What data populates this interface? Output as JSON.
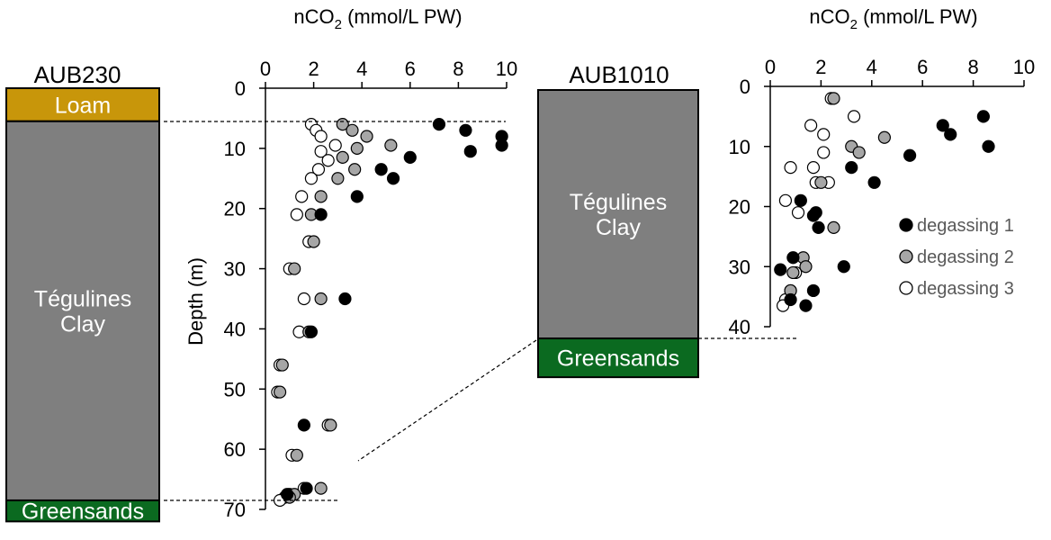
{
  "colors": {
    "loam": "#C8960A",
    "clay": "#7F7F7F",
    "greensands": "#0B6A20",
    "degassing_1": "#000000",
    "degassing_2": "#A6A6A6",
    "degassing_3": "#FFFFFF"
  },
  "columns": {
    "aub230": {
      "title": "AUB230",
      "units": [
        {
          "name": "Loam",
          "top_m": 0,
          "bottom_m": 5.5
        },
        {
          "name": "Tégulines\nClay",
          "top_m": 5.5,
          "bottom_m": 68.5
        },
        {
          "name": "Greensands",
          "top_m": 68.5,
          "bottom_m": 72
        }
      ]
    },
    "aub1010": {
      "title": "AUB1010",
      "units": [
        {
          "name": "Tégulines\nClay",
          "top_m": 5.5,
          "bottom_m": 37.5
        },
        {
          "name": "Greensands",
          "top_m": 37.5,
          "bottom_m": 42.5
        }
      ]
    }
  },
  "chart_data": [
    {
      "type": "scatter",
      "well": "AUB230",
      "xlabel": "nCO2 (mmol/L PW)",
      "ylabel": "Depth (m)",
      "xlim": [
        0,
        10
      ],
      "ylim": [
        70,
        0
      ],
      "xticks": [
        0,
        2,
        4,
        6,
        8,
        10
      ],
      "yticks": [
        0,
        10,
        20,
        30,
        40,
        50,
        60,
        70
      ],
      "legend": "none",
      "series": [
        {
          "name": "degassing 1",
          "points": [
            [
              7.2,
              6
            ],
            [
              8.3,
              7
            ],
            [
              9.8,
              8
            ],
            [
              9.8,
              9.5
            ],
            [
              8.5,
              10.5
            ],
            [
              6.0,
              11.5
            ],
            [
              4.8,
              13.5
            ],
            [
              5.3,
              15
            ],
            [
              3.8,
              18
            ],
            [
              2.3,
              21
            ],
            [
              3.3,
              35
            ],
            [
              1.9,
              40.5
            ],
            [
              1.6,
              56
            ],
            [
              1.7,
              66.5
            ],
            [
              0.9,
              67.5
            ]
          ]
        },
        {
          "name": "degassing 2",
          "points": [
            [
              3.2,
              6
            ],
            [
              3.6,
              7
            ],
            [
              4.2,
              8
            ],
            [
              5.2,
              9.5
            ],
            [
              3.8,
              10
            ],
            [
              3.2,
              11.5
            ],
            [
              3.7,
              13.5
            ],
            [
              3.0,
              15
            ],
            [
              2.3,
              18
            ],
            [
              1.9,
              21
            ],
            [
              2.0,
              25.5
            ],
            [
              1.2,
              30
            ],
            [
              2.3,
              35
            ],
            [
              1.8,
              40.5
            ],
            [
              0.7,
              46
            ],
            [
              0.6,
              50.5
            ],
            [
              2.7,
              56
            ],
            [
              1.3,
              61
            ],
            [
              2.3,
              66.5
            ],
            [
              1.2,
              67.5
            ],
            [
              1.0,
              68
            ]
          ]
        },
        {
          "name": "degassing 3",
          "points": [
            [
              1.9,
              6
            ],
            [
              2.1,
              7
            ],
            [
              2.3,
              8
            ],
            [
              2.9,
              9.5
            ],
            [
              2.3,
              10.5
            ],
            [
              2.6,
              12
            ],
            [
              2.2,
              13.5
            ],
            [
              1.9,
              15
            ],
            [
              1.5,
              18
            ],
            [
              1.3,
              21
            ],
            [
              1.8,
              25.5
            ],
            [
              1.0,
              30
            ],
            [
              1.6,
              35
            ],
            [
              1.4,
              40.5
            ],
            [
              0.6,
              46
            ],
            [
              0.5,
              50.5
            ],
            [
              2.6,
              56
            ],
            [
              1.1,
              61
            ],
            [
              1.6,
              66.5
            ],
            [
              1.0,
              67.5
            ],
            [
              0.8,
              68
            ],
            [
              0.6,
              68.5
            ]
          ]
        }
      ]
    },
    {
      "type": "scatter",
      "well": "AUB1010",
      "xlabel": "nCO2 (mmol/L PW)",
      "ylabel": "",
      "xlim": [
        0,
        10
      ],
      "ylim": [
        40,
        0
      ],
      "xticks": [
        0,
        2,
        4,
        6,
        8,
        10
      ],
      "yticks": [
        0,
        10,
        20,
        30,
        40
      ],
      "legend": "right",
      "series": [
        {
          "name": "degassing 1",
          "points": [
            [
              8.4,
              5
            ],
            [
              6.8,
              6.5
            ],
            [
              7.1,
              8
            ],
            [
              8.6,
              10
            ],
            [
              5.5,
              11.5
            ],
            [
              3.2,
              13.5
            ],
            [
              4.1,
              16
            ],
            [
              1.2,
              19
            ],
            [
              1.8,
              21
            ],
            [
              1.7,
              21.5
            ],
            [
              1.9,
              23.5
            ],
            [
              0.9,
              28.5
            ],
            [
              2.9,
              30
            ],
            [
              0.4,
              30.5
            ],
            [
              1.7,
              34
            ],
            [
              0.8,
              35.5
            ],
            [
              1.4,
              36.5
            ]
          ]
        },
        {
          "name": "degassing 2",
          "points": [
            [
              2.5,
              2
            ],
            [
              4.5,
              8.5
            ],
            [
              3.2,
              10
            ],
            [
              3.5,
              11
            ],
            [
              2.0,
              16
            ],
            [
              2.5,
              23.5
            ],
            [
              1.3,
              28.5
            ],
            [
              1.4,
              30
            ],
            [
              0.9,
              31
            ],
            [
              0.8,
              34
            ]
          ]
        },
        {
          "name": "degassing 3",
          "points": [
            [
              2.4,
              2
            ],
            [
              3.3,
              5
            ],
            [
              1.6,
              6.5
            ],
            [
              2.1,
              8
            ],
            [
              2.1,
              11
            ],
            [
              0.8,
              13.5
            ],
            [
              1.7,
              13.5
            ],
            [
              1.8,
              16
            ],
            [
              2.3,
              16
            ],
            [
              0.6,
              19
            ],
            [
              1.1,
              21
            ],
            [
              1.0,
              31
            ],
            [
              0.8,
              34
            ],
            [
              0.6,
              35.5
            ],
            [
              0.5,
              36.5
            ]
          ]
        }
      ]
    }
  ]
}
